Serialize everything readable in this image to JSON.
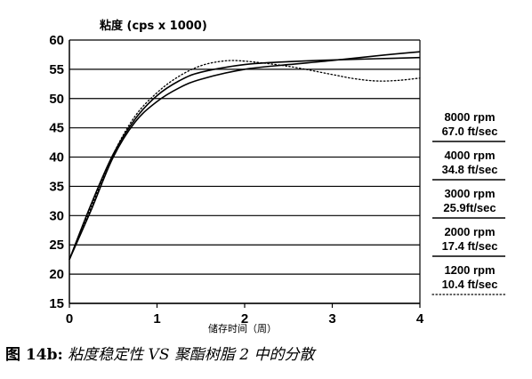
{
  "chart_data": {
    "type": "line",
    "ylabel": "粘度 (cps x 1000)",
    "xlabel": "储存时间（周）",
    "xlim": [
      0,
      4
    ],
    "ylim": [
      15,
      60
    ],
    "xticks": [
      0,
      1,
      2,
      3,
      4
    ],
    "yticks": [
      15,
      20,
      25,
      30,
      35,
      40,
      45,
      50,
      55,
      60
    ],
    "grid": "horizontal",
    "legend": "right",
    "series": [
      {
        "name": "8000 rpm 67.0 ft/sec",
        "label_line1": "8000 rpm",
        "label_line2": "67.0 ft/sec",
        "style": "solid",
        "x": [
          0,
          0.25,
          0.5,
          0.75,
          1,
          1.25,
          1.5,
          2,
          2.5,
          3,
          3.5,
          4
        ],
        "y": [
          22.5,
          31,
          40,
          46,
          49.5,
          51.8,
          53.3,
          55,
          55.8,
          56.5,
          57.3,
          58
        ]
      },
      {
        "name": "4000 rpm 34.8 ft/sec",
        "label_line1": "4000 rpm",
        "label_line2": "34.8 ft/sec",
        "style": "solid",
        "x": [
          0,
          0.25,
          0.5,
          0.75,
          1,
          1.25,
          1.5,
          2,
          2.5,
          3,
          3.5,
          4
        ],
        "y": [
          22.5,
          32,
          40.5,
          46.5,
          50.5,
          53,
          54.5,
          55.8,
          56.3,
          56.6,
          56.8,
          57
        ]
      },
      {
        "name": "1200 rpm 10.4 ft/sec",
        "label_line1": "1200 rpm",
        "label_line2": "10.4 ft/sec",
        "style": "dotted",
        "x": [
          0,
          0.25,
          0.5,
          0.75,
          1,
          1.25,
          1.5,
          1.75,
          2,
          2.5,
          3,
          3.25,
          3.5,
          3.75,
          4
        ],
        "y": [
          22.5,
          31.5,
          40.5,
          47,
          51,
          53.8,
          55.6,
          56.4,
          56.4,
          55.5,
          54.1,
          53.4,
          53,
          53.1,
          53.5
        ]
      }
    ],
    "legend_entries": [
      {
        "line1": "8000 rpm",
        "line2": "67.0 ft/sec",
        "style": "solid"
      },
      {
        "line1": "4000 rpm",
        "line2": "34.8 ft/sec",
        "style": "solid"
      },
      {
        "line1": "3000 rpm",
        "line2": "25.9ft/sec",
        "style": "solid"
      },
      {
        "line1": "2000 rpm",
        "line2": "17.4 ft/sec",
        "style": "solid"
      },
      {
        "line1": "1200 rpm",
        "line2": "10.4 ft/sec",
        "style": "dotted"
      }
    ]
  },
  "caption": {
    "figure_label": "图 14b:",
    "description": "粘度稳定性 VS 聚酯树脂 2 中的分散"
  }
}
